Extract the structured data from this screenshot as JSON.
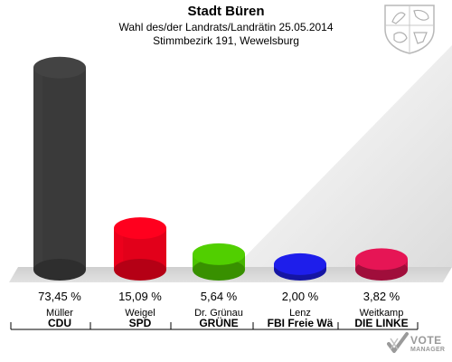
{
  "header": {
    "title": "Stadt Büren",
    "subtitle": "Wahl des/der Landrats/Landrätin 25.05.2014",
    "district": "Stimmbezirk 191, Wewelsburg"
  },
  "brand": {
    "logo_line1": "VOTE",
    "logo_line2": "MANAGER"
  },
  "icons": {
    "crest": "coat-of-arms-icon",
    "logo": "vote-manager-check-icon"
  },
  "chart_data": {
    "type": "bar",
    "title": "Stadt Büren",
    "categories": [
      "CDU",
      "SPD",
      "GRÜNE",
      "FBI Freie Wä",
      "DIE LINKE"
    ],
    "candidates": [
      "Müller",
      "Weigel",
      "Dr. Grünau",
      "Lenz",
      "Weitkamp"
    ],
    "values": [
      73.45,
      15.09,
      5.64,
      2.0,
      3.82
    ],
    "value_labels": [
      "73,45 %",
      "15,09 %",
      "5,64 %",
      "2,00 %",
      "3,82 %"
    ],
    "colors": [
      "#3a3a3a",
      "#e2001a",
      "#46b400",
      "#1a1acc",
      "#c8124a"
    ],
    "ylim": [
      0,
      75
    ],
    "grid": false,
    "legend": "none"
  }
}
